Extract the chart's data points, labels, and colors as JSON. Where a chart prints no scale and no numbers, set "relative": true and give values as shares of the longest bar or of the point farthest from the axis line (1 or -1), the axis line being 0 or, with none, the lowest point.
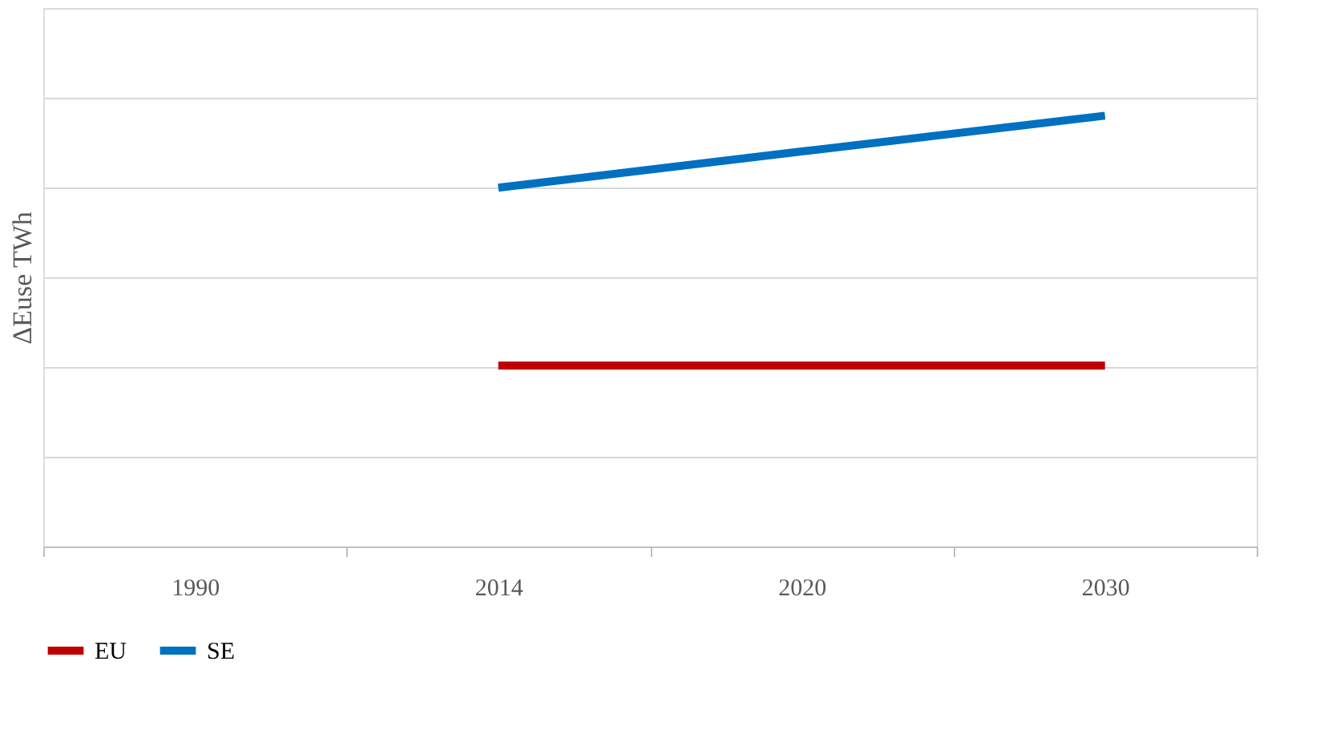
{
  "chart_data": {
    "type": "line",
    "relative": true,
    "ylabel": "ΔEuse TWh",
    "categories": [
      "1990",
      "2014",
      "2020",
      "2030"
    ],
    "series": [
      {
        "name": "EU",
        "color": "#c00000",
        "values": [
          null,
          0.42,
          0.42,
          0.42
        ]
      },
      {
        "name": "SE",
        "color": "#0070c0",
        "values": [
          null,
          0.833,
          0.917,
          1
        ]
      }
    ],
    "grid": "y",
    "legend": "bottom",
    "marker": "none",
    "line_style": "solid"
  }
}
